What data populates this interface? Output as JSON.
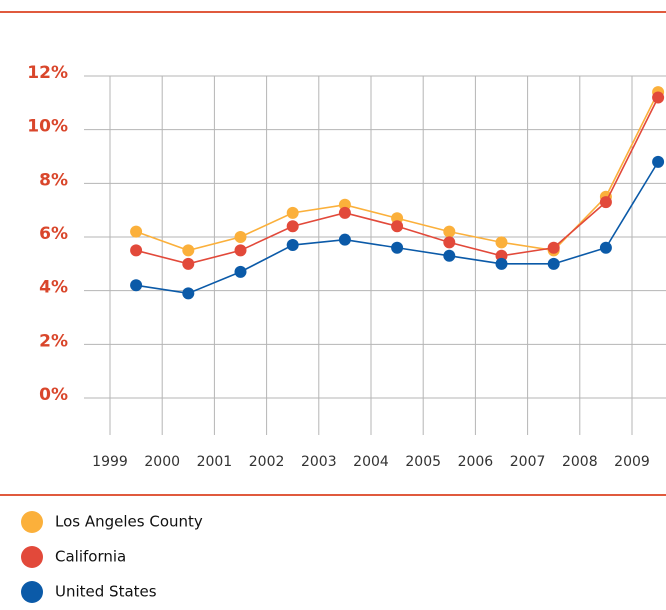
{
  "chart_data": {
    "type": "line",
    "categories": [
      "1999",
      "2000",
      "2001",
      "2002",
      "2003",
      "2004",
      "2005",
      "2006",
      "2007",
      "2008",
      "2009"
    ],
    "series": [
      {
        "name": "Los Angeles County",
        "color": "#fbb03b",
        "values": [
          6.2,
          5.5,
          6.0,
          6.9,
          7.2,
          6.7,
          6.2,
          5.8,
          5.5,
          7.5,
          11.4
        ]
      },
      {
        "name": "California",
        "color": "#e2493a",
        "values": [
          5.5,
          5.0,
          5.5,
          6.4,
          6.9,
          6.4,
          5.8,
          5.3,
          5.6,
          7.3,
          11.2
        ]
      },
      {
        "name": "United States",
        "color": "#0b5aa8",
        "values": [
          4.2,
          3.9,
          4.7,
          5.7,
          5.9,
          5.6,
          5.3,
          5.0,
          5.0,
          5.6,
          8.8
        ]
      }
    ],
    "ylim": [
      0,
      12
    ],
    "yticks": [
      {
        "value": 0,
        "label": "0%"
      },
      {
        "value": 2,
        "label": "2%"
      },
      {
        "value": 4,
        "label": "4%"
      },
      {
        "value": 6,
        "label": "6%"
      },
      {
        "value": 8,
        "label": "8%"
      },
      {
        "value": 10,
        "label": "10%"
      },
      {
        "value": 12,
        "label": "12%"
      }
    ],
    "grid": true
  }
}
